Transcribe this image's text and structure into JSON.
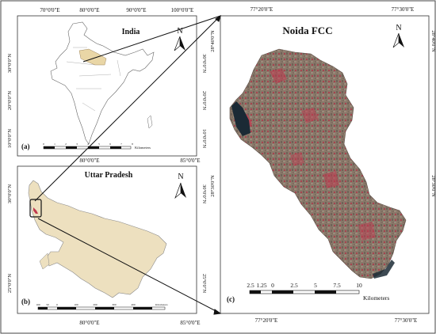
{
  "panel_a": {
    "title": "India",
    "letter": "(a)",
    "north": "N",
    "top_ticks": [
      "70°0'0\"E",
      "80°0'0\"E",
      "90°0'0\"E",
      "100°0'0\"E"
    ],
    "bottom_ticks": [
      "80°0'0\"E"
    ],
    "left_ticks": [
      "30°0'0\"N",
      "20°0'0\"N",
      "10°0'0\"N"
    ],
    "right_ticks": [
      "30°0'0\"N",
      "20°0'0\"N",
      "10°0'0\"N"
    ],
    "scale_unit": "Kilometers",
    "scale_labels": [
      "0",
      "1",
      "2",
      "3",
      "4",
      "5",
      "6",
      "7",
      "8"
    ]
  },
  "panel_b": {
    "title": "Uttar Pradesh",
    "letter": "(b)",
    "north": "N",
    "bottom_ticks": [
      "80°0'0\"E",
      "85°0'0\"E"
    ],
    "top_right_tick": "85°0'0\"E",
    "left_ticks": [
      "30°0'0\"N",
      "25°0'0\"N"
    ],
    "right_ticks": [
      "30°0'0\"N",
      "25°0'0\"N"
    ],
    "scale_labels": [
      "100",
      "50",
      "0",
      "100",
      "200",
      "300",
      "400"
    ],
    "scale_unit": "Kilometers"
  },
  "panel_c": {
    "title": "Noida FCC",
    "letter": "(c)",
    "north": "N",
    "top_ticks": [
      "77°20'0\"E",
      "77°30'0\"E"
    ],
    "bottom_ticks": [
      "77°20'0\"E",
      "77°30'0\"E"
    ],
    "left_ticks": [
      "28°40'0\"N",
      "28°30'0\"N"
    ],
    "right_ticks": [
      "28°40'0\"N",
      "28°30'0\"N"
    ],
    "scale_labels": [
      "2.5",
      "1.25",
      "0",
      "2.5",
      "5",
      "7.5",
      "10"
    ],
    "scale_unit": "Kilometers"
  },
  "colors": {
    "state_fill": "#ede0bf",
    "up_highlight": "#e9d6a6",
    "fcc_base": "#8b7a6c",
    "fcc_red": "#c0394f",
    "water": "#1b2a35"
  }
}
